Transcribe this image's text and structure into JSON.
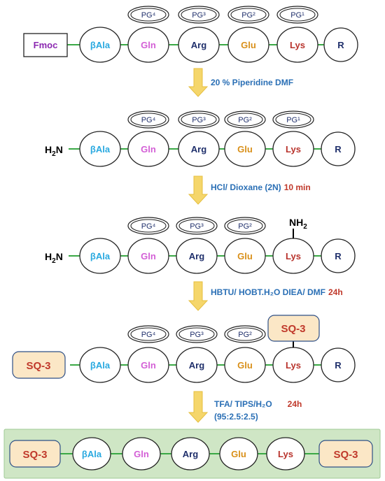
{
  "colors": {
    "bond": "#3aa845",
    "arrow": "#f5d66b",
    "arrow_stroke": "#e6bf3f",
    "sq3_fill": "#fbe7c6",
    "sq3_text": "#c0392b",
    "final_band": "#cfe6c5",
    "reagent_text": "#2a6fb5",
    "time_text": "#c0392b"
  },
  "residue_colors": {
    "fmoc": "#8b28b0",
    "bala": "#29a9e0",
    "gln": "#d35fd6",
    "arg": "#1f2f6b",
    "glu": "#d9901a",
    "lys": "#b8332c",
    "r": "#1f2f6b",
    "pg": "#1f2f6b",
    "amine": "#000000"
  },
  "labels": {
    "fmoc": "Fmoc",
    "bala": "βAla",
    "gln": "Gln",
    "arg": "Arg",
    "glu": "Glu",
    "lys": "Lys",
    "r": "R",
    "pg4": "PG⁴",
    "pg3": "PG³",
    "pg2": "PG²",
    "pg1": "PG¹",
    "amine_n": "N",
    "amine_h": "H",
    "amine_sub": "2",
    "nh2": "NH",
    "nh2_sub": "2",
    "sq3": "SQ-3"
  },
  "steps": [
    {
      "reagent": "20 % Piperidine  DMF",
      "time": ""
    },
    {
      "reagent": "HCl/ Dioxane (2N)",
      "time": "10 min"
    },
    {
      "reagent": "HBTU/ HOBT.H₂O DIEA/ DMF",
      "time": "24h"
    },
    {
      "reagent": "TFA/ TIPS/H₂O",
      "time": "24h",
      "reagent_line2": "(95:2.5:2.5)"
    }
  ]
}
